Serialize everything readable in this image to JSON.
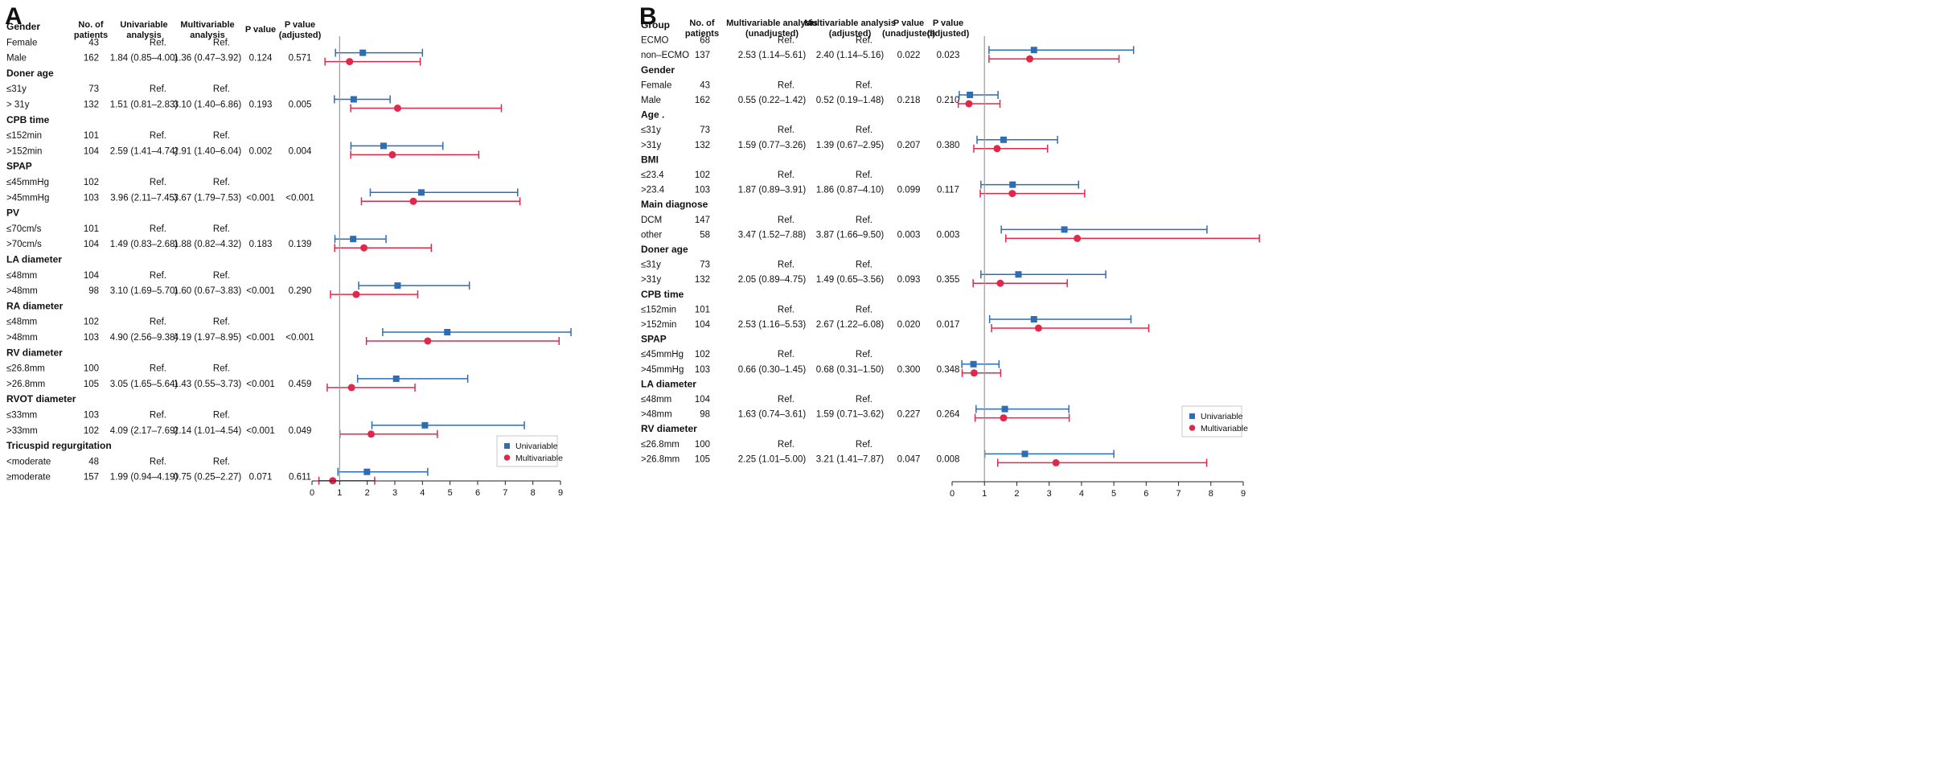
{
  "chart_data": [
    {
      "type": "forest",
      "panel_label": "A",
      "headers": {
        "group": "Gender",
        "n": "No. of patients",
        "est1": "Univariable analysis",
        "est2": "Multivariable analysis",
        "p1": "P value",
        "p2": "P value (adjusted)"
      },
      "x_ticks": [
        "0",
        "1",
        "2",
        "3",
        "4",
        "5",
        "6",
        "7",
        "8",
        "9"
      ],
      "xlim": [
        0,
        9
      ],
      "reference_line": 1,
      "legend": [
        "Univariable",
        "Multivariable"
      ],
      "series_colors": {
        "univariable": "#2e6db4",
        "multivariable": "#e0294a"
      },
      "groups": [
        {
          "name": "Gender",
          "rows": [
            {
              "label": "Female",
              "n": "43",
              "est1": "Ref.",
              "est2": "Ref.",
              "p1": "",
              "p2": ""
            },
            {
              "label": "Male",
              "n": "162",
              "est1": "1.84 (0.85–4.00)",
              "est2": "1.36 (0.47–3.92)",
              "p1": "0.124",
              "p2": "0.571",
              "ci1": [
                1.84,
                0.85,
                4.0
              ],
              "ci2": [
                1.36,
                0.47,
                3.92
              ]
            }
          ]
        },
        {
          "name": "Doner age",
          "rows": [
            {
              "label": "≤31y",
              "n": "73",
              "est1": "Ref.",
              "est2": "Ref.",
              "p1": "",
              "p2": ""
            },
            {
              "label": "> 31y",
              "n": "132",
              "est1": "1.51 (0.81–2.83)",
              "est2": "3.10 (1.40–6.86)",
              "p1": "0.193",
              "p2": "0.005",
              "ci1": [
                1.51,
                0.81,
                2.83
              ],
              "ci2": [
                3.1,
                1.4,
                6.86
              ]
            }
          ]
        },
        {
          "name": "CPB time",
          "rows": [
            {
              "label": "≤152min",
              "n": "101",
              "est1": "Ref.",
              "est2": "Ref.",
              "p1": "",
              "p2": ""
            },
            {
              "label": ">152min",
              "n": "104",
              "est1": "2.59 (1.41–4.74)",
              "est2": "2.91 (1.40–6.04)",
              "p1": "0.002",
              "p2": "0.004",
              "ci1": [
                2.59,
                1.41,
                4.74
              ],
              "ci2": [
                2.91,
                1.4,
                6.04
              ]
            }
          ]
        },
        {
          "name": "SPAP",
          "rows": [
            {
              "label": "≤45mmHg",
              "n": "102",
              "est1": "Ref.",
              "est2": "Ref.",
              "p1": "",
              "p2": ""
            },
            {
              "label": ">45mmHg",
              "n": "103",
              "est1": "3.96 (2.11–7.45)",
              "est2": "3.67 (1.79–7.53)",
              "p1": "<0.001",
              "p2": "<0.001",
              "ci1": [
                3.96,
                2.11,
                7.45
              ],
              "ci2": [
                3.67,
                1.79,
                7.53
              ]
            }
          ]
        },
        {
          "name": "PV",
          "rows": [
            {
              "label": "≤70cm/s",
              "n": "101",
              "est1": "Ref.",
              "est2": "Ref.",
              "p1": "",
              "p2": ""
            },
            {
              "label": ">70cm/s",
              "n": "104",
              "est1": "1.49 (0.83–2.68)",
              "est2": "1.88 (0.82–4.32)",
              "p1": "0.183",
              "p2": "0.139",
              "ci1": [
                1.49,
                0.83,
                2.68
              ],
              "ci2": [
                1.88,
                0.82,
                4.32
              ]
            }
          ]
        },
        {
          "name": "LA diameter",
          "rows": [
            {
              "label": "≤48mm",
              "n": "104",
              "est1": "Ref.",
              "est2": "Ref.",
              "p1": "",
              "p2": ""
            },
            {
              "label": ">48mm",
              "n": "98",
              "est1": "3.10 (1.69–5.70)",
              "est2": "1.60 (0.67–3.83)",
              "p1": "<0.001",
              "p2": "0.290",
              "ci1": [
                3.1,
                1.69,
                5.7
              ],
              "ci2": [
                1.6,
                0.67,
                3.83
              ]
            }
          ]
        },
        {
          "name": "RA diameter",
          "rows": [
            {
              "label": "≤48mm",
              "n": "102",
              "est1": "Ref.",
              "est2": "Ref.",
              "p1": "",
              "p2": ""
            },
            {
              "label": ">48mm",
              "n": "103",
              "est1": "4.90 (2.56–9.38)",
              "est2": "4.19 (1.97–8.95)",
              "p1": "<0.001",
              "p2": "<0.001",
              "ci1": [
                4.9,
                2.56,
                9.38
              ],
              "ci2": [
                4.19,
                1.97,
                8.95
              ]
            }
          ]
        },
        {
          "name": "RV diameter",
          "rows": [
            {
              "label": "≤26.8mm",
              "n": "100",
              "est1": "Ref.",
              "est2": "Ref.",
              "p1": "",
              "p2": ""
            },
            {
              "label": ">26.8mm",
              "n": "105",
              "est1": "3.05 (1.65–5.64)",
              "est2": "1.43 (0.55–3.73)",
              "p1": "<0.001",
              "p2": "0.459",
              "ci1": [
                3.05,
                1.65,
                5.64
              ],
              "ci2": [
                1.43,
                0.55,
                3.73
              ]
            }
          ]
        },
        {
          "name": "RVOT diameter",
          "rows": [
            {
              "label": "≤33mm",
              "n": "103",
              "est1": "Ref.",
              "est2": "Ref.",
              "p1": "",
              "p2": ""
            },
            {
              "label": ">33mm",
              "n": "102",
              "est1": "4.09 (2.17–7.69)",
              "est2": "2.14 (1.01–4.54)",
              "p1": "<0.001",
              "p2": "0.049",
              "ci1": [
                4.09,
                2.17,
                7.69
              ],
              "ci2": [
                2.14,
                1.01,
                4.54
              ]
            }
          ]
        },
        {
          "name": "Tricuspid regurgitation",
          "rows": [
            {
              "label": "<moderate",
              "n": "48",
              "est1": "Ref.",
              "est2": "Ref.",
              "p1": "",
              "p2": ""
            },
            {
              "label": "≥moderate",
              "n": "157",
              "est1": "1.99 (0.94–4.19)",
              "est2": "0.75 (0.25–2.27)",
              "p1": "0.071",
              "p2": "0.611",
              "ci1": [
                1.99,
                0.94,
                4.19
              ],
              "ci2": [
                0.75,
                0.25,
                2.27
              ]
            }
          ]
        }
      ]
    },
    {
      "type": "forest",
      "panel_label": "B",
      "headers": {
        "group": "Group",
        "n": "No. of patients",
        "est1": "Multivariable analysis (unadjusted)",
        "est2": "Multivariable analysis (adjusted)",
        "p1": "P value (unadjusted)",
        "p2": "P value (adjusted)"
      },
      "x_ticks": [
        "0",
        "1",
        "2",
        "3",
        "4",
        "5",
        "6",
        "7",
        "8",
        "9"
      ],
      "xlim": [
        0,
        9
      ],
      "reference_line": 1,
      "legend": [
        "Univariable",
        "Multivariable"
      ],
      "series_colors": {
        "univariable": "#2e6db4",
        "multivariable": "#e0294a"
      },
      "groups": [
        {
          "name": "Group",
          "rows": [
            {
              "label": "ECMO",
              "n": "68",
              "est1": "Ref.",
              "est2": "Ref.",
              "p1": "",
              "p2": ""
            },
            {
              "label": "non–ECMO",
              "n": "137",
              "est1": "2.53 (1.14–5.61)",
              "est2": "2.40 (1.14–5.16)",
              "p1": "0.022",
              "p2": "0.023",
              "ci1": [
                2.53,
                1.14,
                5.61
              ],
              "ci2": [
                2.4,
                1.14,
                5.16
              ]
            }
          ]
        },
        {
          "name": "Gender",
          "rows": [
            {
              "label": "Female",
              "n": "43",
              "est1": "Ref.",
              "est2": "Ref.",
              "p1": "",
              "p2": ""
            },
            {
              "label": "Male",
              "n": "162",
              "est1": "0.55 (0.22–1.42)",
              "est2": "0.52 (0.19–1.48)",
              "p1": "0.218",
              "p2": "0.210",
              "ci1": [
                0.55,
                0.22,
                1.42
              ],
              "ci2": [
                0.52,
                0.19,
                1.48
              ]
            }
          ]
        },
        {
          "name": "Age .",
          "rows": [
            {
              "label": "≤31y",
              "n": "73",
              "est1": "Ref.",
              "est2": "Ref.",
              "p1": "",
              "p2": ""
            },
            {
              "label": ">31y",
              "n": "132",
              "est1": "1.59 (0.77–3.26)",
              "est2": "1.39 (0.67–2.95)",
              "p1": "0.207",
              "p2": "0.380",
              "ci1": [
                1.59,
                0.77,
                3.26
              ],
              "ci2": [
                1.39,
                0.67,
                2.95
              ]
            }
          ]
        },
        {
          "name": "BMI",
          "rows": [
            {
              "label": "≤23.4",
              "n": "102",
              "est1": "Ref.",
              "est2": "Ref.",
              "p1": "",
              "p2": ""
            },
            {
              "label": ">23.4",
              "n": "103",
              "est1": "1.87 (0.89–3.91)",
              "est2": "1.86 (0.87–4.10)",
              "p1": "0.099",
              "p2": "0.117",
              "ci1": [
                1.87,
                0.89,
                3.91
              ],
              "ci2": [
                1.86,
                0.87,
                4.1
              ]
            }
          ]
        },
        {
          "name": "Main diagnose",
          "rows": [
            {
              "label": "DCM",
              "n": "147",
              "est1": "Ref.",
              "est2": "Ref.",
              "p1": "",
              "p2": ""
            },
            {
              "label": "other",
              "n": "58",
              "est1": "3.47 (1.52–7.88)",
              "est2": "3.87 (1.66–9.50)",
              "p1": "0.003",
              "p2": "0.003",
              "ci1": [
                3.47,
                1.52,
                7.88
              ],
              "ci2": [
                3.87,
                1.66,
                9.5
              ]
            }
          ]
        },
        {
          "name": "Doner age",
          "rows": [
            {
              "label": "≤31y",
              "n": "73",
              "est1": "Ref.",
              "est2": "Ref.",
              "p1": "",
              "p2": ""
            },
            {
              "label": ">31y",
              "n": "132",
              "est1": "2.05 (0.89–4.75)",
              "est2": "1.49 (0.65–3.56)",
              "p1": "0.093",
              "p2": "0.355",
              "ci1": [
                2.05,
                0.89,
                4.75
              ],
              "ci2": [
                1.49,
                0.65,
                3.56
              ]
            }
          ]
        },
        {
          "name": "CPB time",
          "rows": [
            {
              "label": "≤152min",
              "n": "101",
              "est1": "Ref.",
              "est2": "Ref.",
              "p1": "",
              "p2": ""
            },
            {
              "label": ">152min",
              "n": "104",
              "est1": "2.53 (1.16–5.53)",
              "est2": "2.67 (1.22–6.08)",
              "p1": "0.020",
              "p2": "0.017",
              "ci1": [
                2.53,
                1.16,
                5.53
              ],
              "ci2": [
                2.67,
                1.22,
                6.08
              ]
            }
          ]
        },
        {
          "name": "SPAP",
          "rows": [
            {
              "label": "≤45mmHg",
              "n": "102",
              "est1": "Ref.",
              "est2": "Ref.",
              "p1": "",
              "p2": ""
            },
            {
              "label": ">45mmHg",
              "n": "103",
              "est1": "0.66 (0.30–1.45)",
              "est2": "0.68 (0.31–1.50)",
              "p1": "0.300",
              "p2": "0.348",
              "ci1": [
                0.66,
                0.3,
                1.45
              ],
              "ci2": [
                0.68,
                0.31,
                1.5
              ]
            }
          ]
        },
        {
          "name": "LA diameter",
          "rows": [
            {
              "label": "≤48mm",
              "n": "104",
              "est1": "Ref.",
              "est2": "Ref.",
              "p1": "",
              "p2": ""
            },
            {
              "label": ">48mm",
              "n": "98",
              "est1": "1.63 (0.74–3.61)",
              "est2": "1.59 (0.71–3.62)",
              "p1": "0.227",
              "p2": "0.264",
              "ci1": [
                1.63,
                0.74,
                3.61
              ],
              "ci2": [
                1.59,
                0.71,
                3.62
              ]
            }
          ]
        },
        {
          "name": "RV diameter",
          "rows": [
            {
              "label": "≤26.8mm",
              "n": "100",
              "est1": "Ref.",
              "est2": "Ref.",
              "p1": "",
              "p2": ""
            },
            {
              "label": ">26.8mm",
              "n": "105",
              "est1": "2.25 (1.01–5.00)",
              "est2": "3.21 (1.41–7.87)",
              "p1": "0.047",
              "p2": "0.008",
              "ci1": [
                2.25,
                1.01,
                5.0
              ],
              "ci2": [
                3.21,
                1.41,
                7.87
              ]
            }
          ]
        }
      ]
    }
  ]
}
